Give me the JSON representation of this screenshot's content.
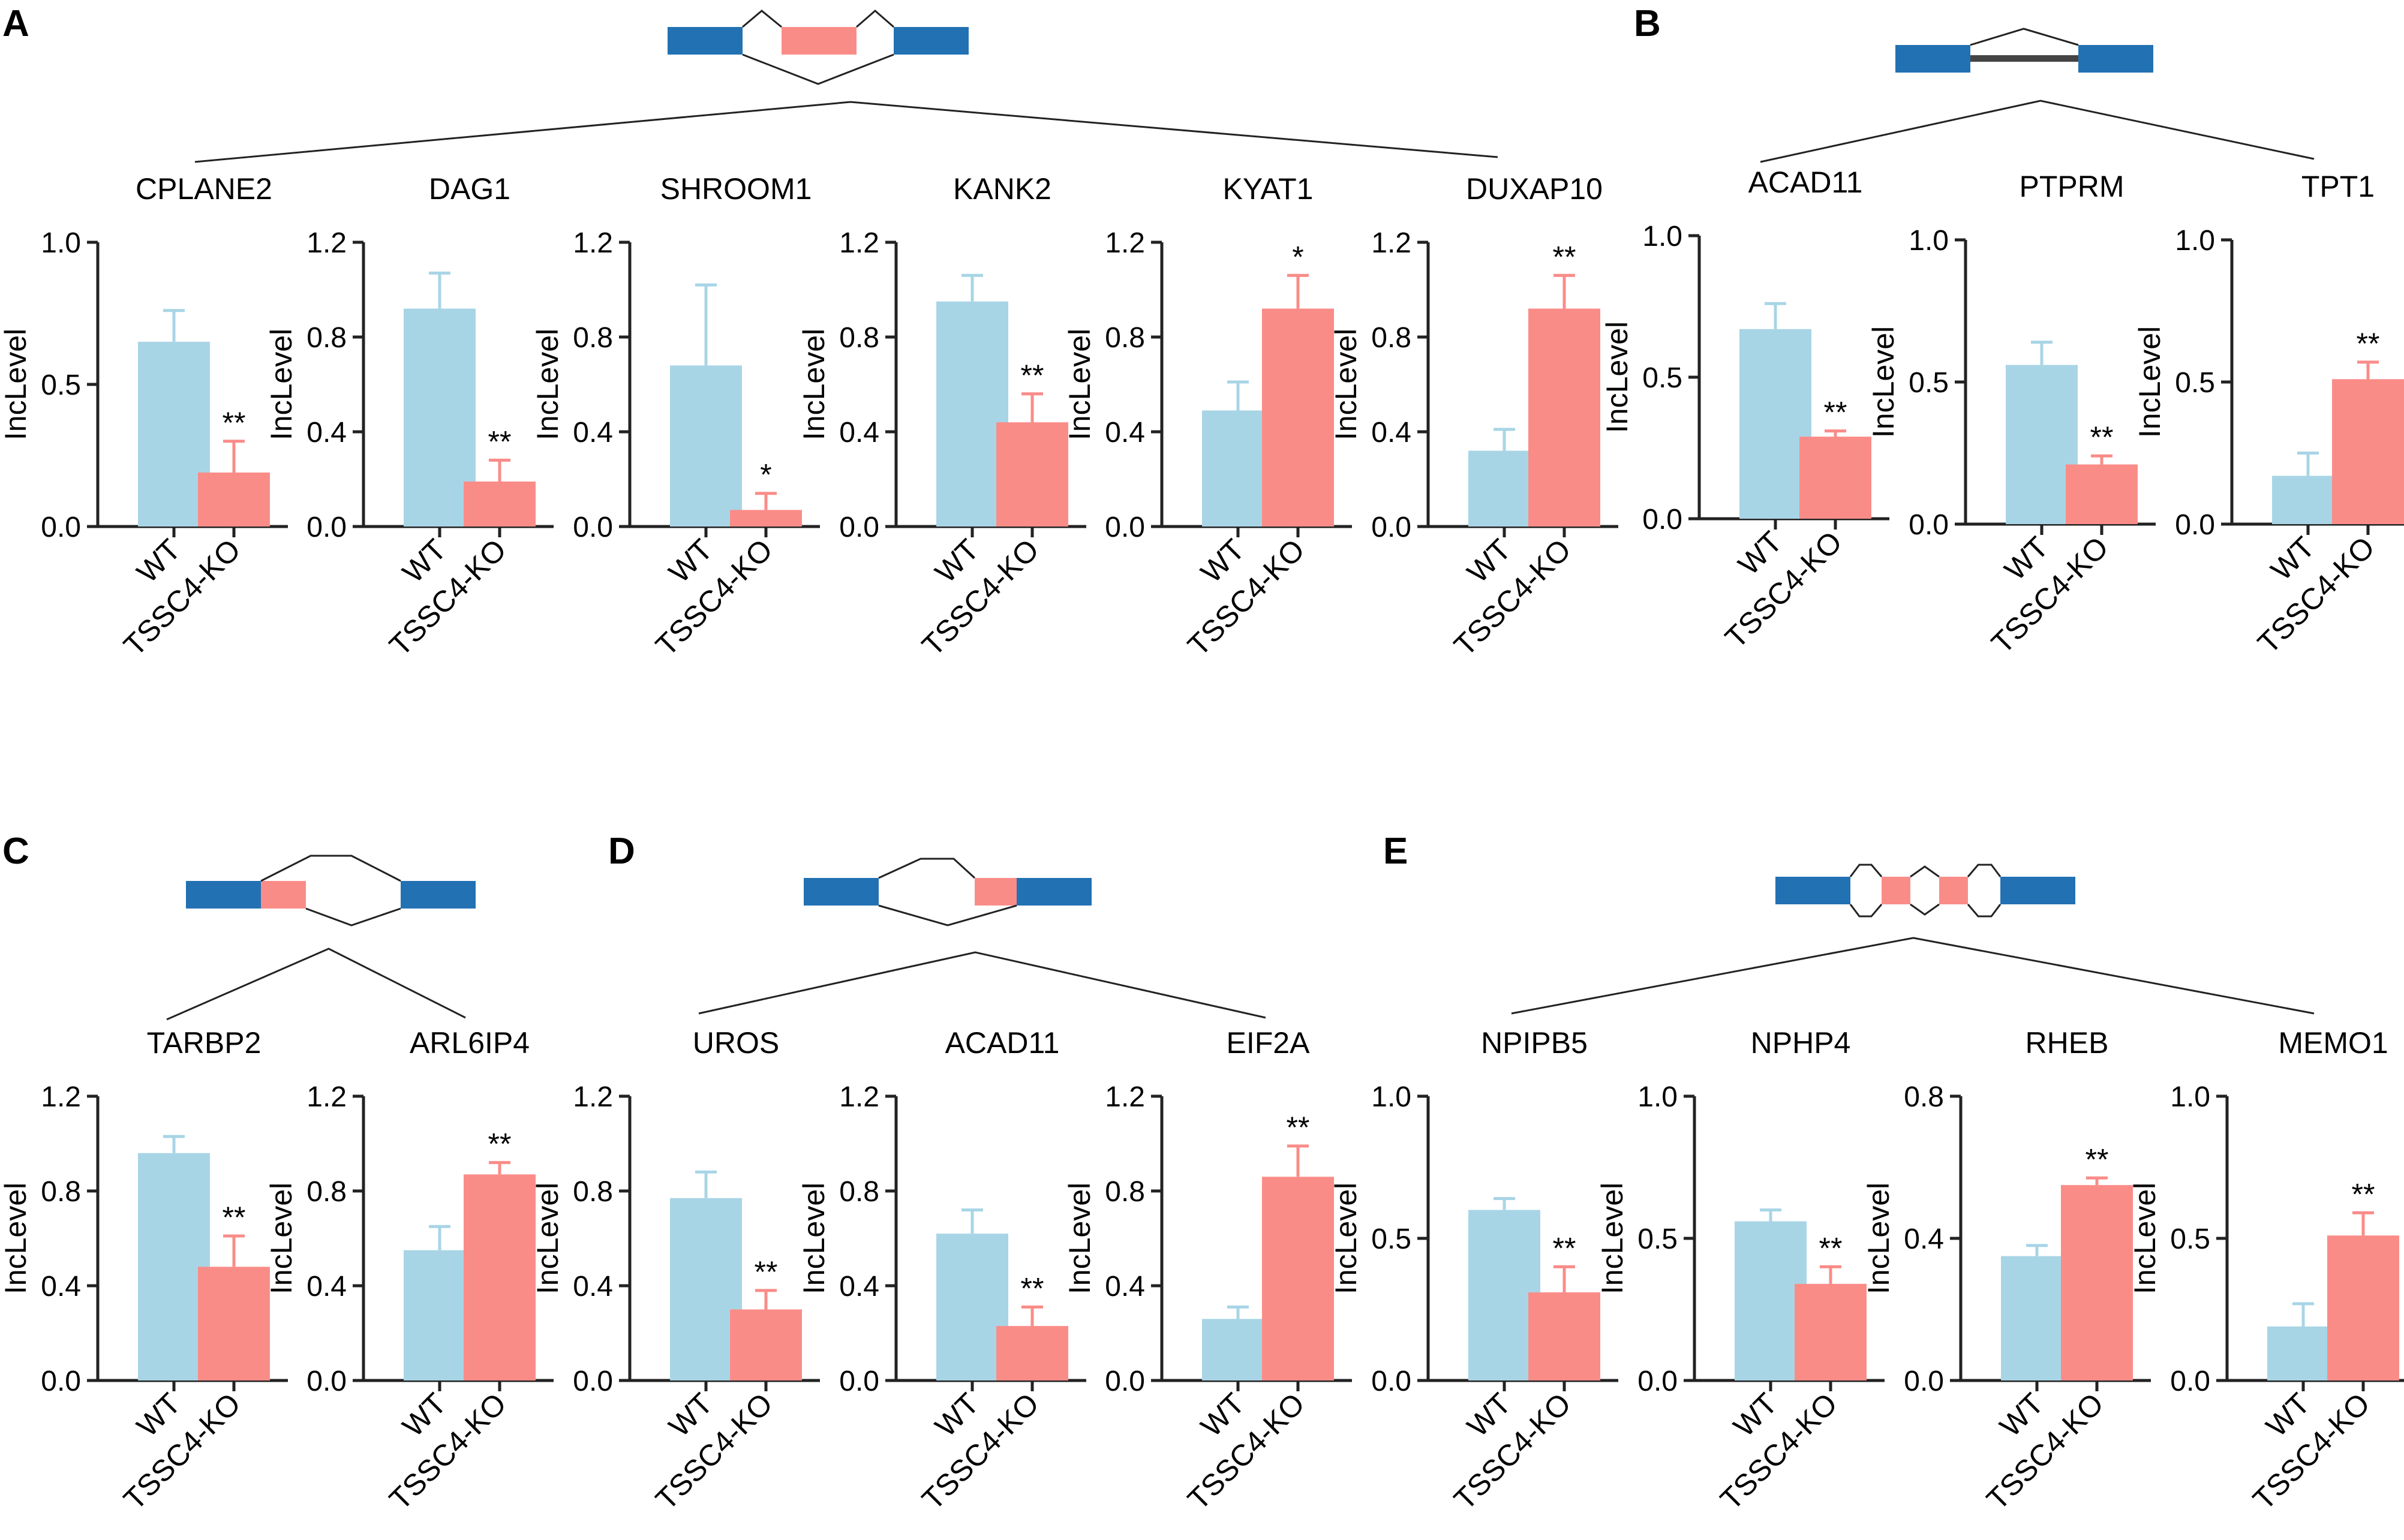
{
  "colors": {
    "wt": "#a8d5e6",
    "ko": "#fa8c88",
    "exon": "#2271b3",
    "axis": "#222222"
  },
  "ylabel": "IncLevel",
  "groups": [
    "WT",
    "TSSC4-KO"
  ],
  "panels": [
    {
      "letter": "A",
      "diagram": "se"
    },
    {
      "letter": "B",
      "diagram": "ri"
    },
    {
      "letter": "C",
      "diagram": "a5ss"
    },
    {
      "letter": "D",
      "diagram": "a3ss"
    },
    {
      "letter": "E",
      "diagram": "mxe"
    }
  ],
  "chart_data": [
    {
      "type": "bar",
      "panel": "A",
      "title": "CPLANE2",
      "categories": [
        "WT",
        "TSSC4-KO"
      ],
      "values": [
        0.65,
        0.19
      ],
      "errors": [
        0.11,
        0.11
      ],
      "ylim": [
        0,
        1.0
      ],
      "yticks": [
        "0.0",
        "0.5",
        "1.0"
      ],
      "ylabel": "IncLevel",
      "significance": "**"
    },
    {
      "type": "bar",
      "panel": "A",
      "title": "DAG1",
      "categories": [
        "WT",
        "TSSC4-KO"
      ],
      "values": [
        0.92,
        0.19
      ],
      "errors": [
        0.15,
        0.09
      ],
      "ylim": [
        0,
        1.2
      ],
      "yticks": [
        "0.0",
        "0.4",
        "0.8",
        "1.2"
      ],
      "ylabel": "IncLevel",
      "significance": "**"
    },
    {
      "type": "bar",
      "panel": "A",
      "title": "SHROOM1",
      "categories": [
        "WT",
        "TSSC4-KO"
      ],
      "values": [
        0.68,
        0.07
      ],
      "errors": [
        0.34,
        0.07
      ],
      "ylim": [
        0,
        1.2
      ],
      "yticks": [
        "0.0",
        "0.4",
        "0.8",
        "1.2"
      ],
      "ylabel": "IncLevel",
      "significance": "*"
    },
    {
      "type": "bar",
      "panel": "A",
      "title": "KANK2",
      "categories": [
        "WT",
        "TSSC4-KO"
      ],
      "values": [
        0.95,
        0.44
      ],
      "errors": [
        0.11,
        0.12
      ],
      "ylim": [
        0,
        1.2
      ],
      "yticks": [
        "0.0",
        "0.4",
        "0.8",
        "1.2"
      ],
      "ylabel": "IncLevel",
      "significance": "**"
    },
    {
      "type": "bar",
      "panel": "A",
      "title": "KYAT1",
      "categories": [
        "WT",
        "TSSC4-KO"
      ],
      "values": [
        0.49,
        0.92
      ],
      "errors": [
        0.12,
        0.14
      ],
      "ylim": [
        0,
        1.2
      ],
      "yticks": [
        "0.0",
        "0.4",
        "0.8",
        "1.2"
      ],
      "ylabel": "IncLevel",
      "significance": "*"
    },
    {
      "type": "bar",
      "panel": "A",
      "title": "DUXAP10",
      "categories": [
        "WT",
        "TSSC4-KO"
      ],
      "values": [
        0.32,
        0.92
      ],
      "errors": [
        0.09,
        0.14
      ],
      "ylim": [
        0,
        1.2
      ],
      "yticks": [
        "0.0",
        "0.4",
        "0.8",
        "1.2"
      ],
      "ylabel": "IncLevel",
      "significance": "**"
    },
    {
      "type": "bar",
      "panel": "B",
      "title": "ACAD11",
      "categories": [
        "WT",
        "TSSC4-KO"
      ],
      "values": [
        0.67,
        0.29
      ],
      "errors": [
        0.09,
        0.02
      ],
      "ylim": [
        0,
        1.0
      ],
      "yticks": [
        "0.0",
        "0.5",
        "1.0"
      ],
      "ylabel": "IncLevel",
      "significance": "**"
    },
    {
      "type": "bar",
      "panel": "B",
      "title": "PTPRM",
      "categories": [
        "WT",
        "TSSC4-KO"
      ],
      "values": [
        0.56,
        0.21
      ],
      "errors": [
        0.08,
        0.03
      ],
      "ylim": [
        0,
        1.0
      ],
      "yticks": [
        "0.0",
        "0.5",
        "1.0"
      ],
      "ylabel": "IncLevel",
      "significance": "**"
    },
    {
      "type": "bar",
      "panel": "B",
      "title": "TPT1",
      "categories": [
        "WT",
        "TSSC4-KO"
      ],
      "values": [
        0.17,
        0.51
      ],
      "errors": [
        0.08,
        0.06
      ],
      "ylim": [
        0,
        1.0
      ],
      "yticks": [
        "0.0",
        "0.5",
        "1.0"
      ],
      "ylabel": "IncLevel",
      "significance": "**"
    },
    {
      "type": "bar",
      "panel": "C",
      "title": "TARBP2",
      "categories": [
        "WT",
        "TSSC4-KO"
      ],
      "values": [
        0.96,
        0.48
      ],
      "errors": [
        0.07,
        0.13
      ],
      "ylim": [
        0,
        1.2
      ],
      "yticks": [
        "0.0",
        "0.4",
        "0.8",
        "1.2"
      ],
      "ylabel": "IncLevel",
      "significance": "**"
    },
    {
      "type": "bar",
      "panel": "C",
      "title": "ARL6IP4",
      "categories": [
        "WT",
        "TSSC4-KO"
      ],
      "values": [
        0.55,
        0.87
      ],
      "errors": [
        0.1,
        0.05
      ],
      "ylim": [
        0,
        1.2
      ],
      "yticks": [
        "0.0",
        "0.4",
        "0.8",
        "1.2"
      ],
      "ylabel": "IncLevel",
      "significance": "**"
    },
    {
      "type": "bar",
      "panel": "D",
      "title": "UROS",
      "categories": [
        "WT",
        "TSSC4-KO"
      ],
      "values": [
        0.77,
        0.3
      ],
      "errors": [
        0.11,
        0.08
      ],
      "ylim": [
        0,
        1.2
      ],
      "yticks": [
        "0.0",
        "0.4",
        "0.8",
        "1.2"
      ],
      "ylabel": "IncLevel",
      "significance": "**"
    },
    {
      "type": "bar",
      "panel": "D",
      "title": "ACAD11",
      "categories": [
        "WT",
        "TSSC4-KO"
      ],
      "values": [
        0.62,
        0.23
      ],
      "errors": [
        0.1,
        0.08
      ],
      "ylim": [
        0,
        1.2
      ],
      "yticks": [
        "0.0",
        "0.4",
        "0.8",
        "1.2"
      ],
      "ylabel": "IncLevel",
      "significance": "**"
    },
    {
      "type": "bar",
      "panel": "D",
      "title": "EIF2A",
      "categories": [
        "WT",
        "TSSC4-KO"
      ],
      "values": [
        0.26,
        0.86
      ],
      "errors": [
        0.05,
        0.13
      ],
      "ylim": [
        0,
        1.2
      ],
      "yticks": [
        "0.0",
        "0.4",
        "0.8",
        "1.2"
      ],
      "ylabel": "IncLevel",
      "significance": "**"
    },
    {
      "type": "bar",
      "panel": "E",
      "title": "NPIPB5",
      "categories": [
        "WT",
        "TSSC4-KO"
      ],
      "values": [
        0.6,
        0.31
      ],
      "errors": [
        0.04,
        0.09
      ],
      "ylim": [
        0,
        1.0
      ],
      "yticks": [
        "0.0",
        "0.5",
        "1.0"
      ],
      "ylabel": "IncLevel",
      "significance": "**"
    },
    {
      "type": "bar",
      "panel": "E",
      "title": "NPHP4",
      "categories": [
        "WT",
        "TSSC4-KO"
      ],
      "values": [
        0.56,
        0.34
      ],
      "errors": [
        0.04,
        0.06
      ],
      "ylim": [
        0,
        1.0
      ],
      "yticks": [
        "0.0",
        "0.5",
        "1.0"
      ],
      "ylabel": "IncLevel",
      "significance": "**"
    },
    {
      "type": "bar",
      "panel": "E",
      "title": "RHEB",
      "categories": [
        "WT",
        "TSSC4-KO"
      ],
      "values": [
        0.35,
        0.55
      ],
      "errors": [
        0.03,
        0.02
      ],
      "ylim": [
        0,
        0.8
      ],
      "yticks": [
        "0.0",
        "0.4",
        "0.8"
      ],
      "ylabel": "IncLevel",
      "significance": "**"
    },
    {
      "type": "bar",
      "panel": "E",
      "title": "MEMO1",
      "categories": [
        "WT",
        "TSSC4-KO"
      ],
      "values": [
        0.19,
        0.51
      ],
      "errors": [
        0.08,
        0.08
      ],
      "ylim": [
        0,
        1.0
      ],
      "yticks": [
        "0.0",
        "0.5",
        "1.0"
      ],
      "ylabel": "IncLevel",
      "significance": "**"
    }
  ]
}
